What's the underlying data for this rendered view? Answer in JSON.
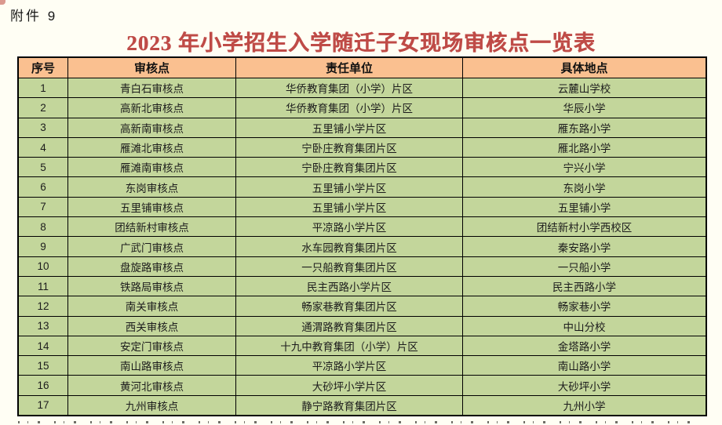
{
  "page": {
    "attachment_label": "附件 9",
    "title": "2023 年小学招生入学随迁子女现场审核点一览表"
  },
  "table": {
    "headers": [
      "序号",
      "审核点",
      "责任单位",
      "具体地点"
    ],
    "rows": [
      [
        "1",
        "青白石审核点",
        "华侨教育集团（小学）片区",
        "云麓山学校"
      ],
      [
        "2",
        "高新北审核点",
        "华侨教育集团（小学）片区",
        "华辰小学"
      ],
      [
        "3",
        "高新南审核点",
        "五里铺小学片区",
        "雁东路小学"
      ],
      [
        "4",
        "雁滩北审核点",
        "宁卧庄教育集团片区",
        "雁北路小学"
      ],
      [
        "5",
        "雁滩南审核点",
        "宁卧庄教育集团片区",
        "宁兴小学"
      ],
      [
        "6",
        "东岗审核点",
        "五里铺小学片区",
        "东岗小学"
      ],
      [
        "7",
        "五里铺审核点",
        "五里铺小学片区",
        "五里铺小学"
      ],
      [
        "8",
        "团结新村审核点",
        "平凉路小学片区",
        "团结新村小学西校区"
      ],
      [
        "9",
        "广武门审核点",
        "水车园教育集团片区",
        "秦安路小学"
      ],
      [
        "10",
        "盘旋路审核点",
        "一只船教育集团片区",
        "一只船小学"
      ],
      [
        "11",
        "铁路局审核点",
        "民主西路小学片区",
        "民主西路小学"
      ],
      [
        "12",
        "南关审核点",
        "畅家巷教育集团片区",
        "畅家巷小学"
      ],
      [
        "13",
        "西关审核点",
        "通渭路教育集团片区",
        "中山分校"
      ],
      [
        "14",
        "安定门审核点",
        "十九中教育集团（小学）片区",
        "金塔路小学"
      ],
      [
        "15",
        "南山路审核点",
        "平凉路小学片区",
        "南山路小学"
      ],
      [
        "16",
        "黄河北审核点",
        "大砂坪小学片区",
        "大砂坪小学"
      ],
      [
        "17",
        "九州审核点",
        "静宁路教育集团片区",
        "九州小学"
      ]
    ]
  },
  "colors": {
    "title_red": "#bf4b47",
    "header_row_bg": "#fac090",
    "data_row_bg": "#c3d69b",
    "table_border": "#000000",
    "page_bg": "#fffef4"
  }
}
